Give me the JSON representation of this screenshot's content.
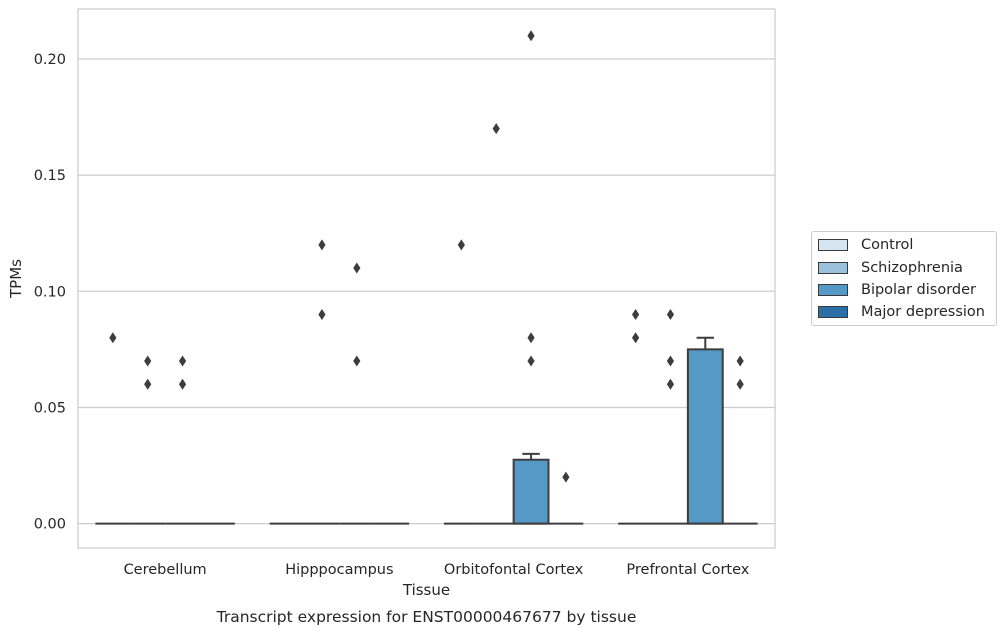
{
  "chart_data": {
    "type": "box",
    "title": "Transcript expression for ENST00000467677 by tissue",
    "xlabel": "Tissue",
    "ylabel": "TPMs",
    "ylim": [
      -0.0105,
      0.2215
    ],
    "yticks": [
      0.0,
      0.05,
      0.1,
      0.15,
      0.2
    ],
    "ytick_labels": [
      "0.00",
      "0.05",
      "0.10",
      "0.15",
      "0.20"
    ],
    "grid": "horizontal",
    "legend_position": "right",
    "categories": [
      "Cerebellum",
      "Hipppocampus",
      "Orbitofontal Cortex",
      "Prefrontal Cortex"
    ],
    "series": [
      {
        "name": "Control",
        "color": "#d4e4f1",
        "boxes": [
          {
            "q1": 0,
            "median": 0,
            "q3": 0,
            "whisker_low": 0,
            "whisker_high": 0,
            "outliers": [
              0.08
            ]
          },
          {
            "q1": 0,
            "median": 0,
            "q3": 0,
            "whisker_low": 0,
            "whisker_high": 0,
            "outliers": []
          },
          {
            "q1": 0,
            "median": 0,
            "q3": 0,
            "whisker_low": 0,
            "whisker_high": 0,
            "outliers": [
              0.12
            ]
          },
          {
            "q1": 0,
            "median": 0,
            "q3": 0,
            "whisker_low": 0,
            "whisker_high": 0,
            "outliers": [
              0.09,
              0.08
            ]
          }
        ]
      },
      {
        "name": "Schizophrenia",
        "color": "#9ac2dc",
        "boxes": [
          {
            "q1": 0,
            "median": 0,
            "q3": 0,
            "whisker_low": 0,
            "whisker_high": 0,
            "outliers": [
              0.07,
              0.06
            ]
          },
          {
            "q1": 0,
            "median": 0,
            "q3": 0,
            "whisker_low": 0,
            "whisker_high": 0,
            "outliers": [
              0.12,
              0.09
            ]
          },
          {
            "q1": 0,
            "median": 0,
            "q3": 0,
            "whisker_low": 0,
            "whisker_high": 0,
            "outliers": [
              0.17
            ]
          },
          {
            "q1": 0,
            "median": 0,
            "q3": 0,
            "whisker_low": 0,
            "whisker_high": 0,
            "outliers": [
              0.09,
              0.07,
              0.06
            ]
          }
        ]
      },
      {
        "name": "Bipolar disorder",
        "color": "#5599c7",
        "boxes": [
          {
            "q1": 0,
            "median": 0,
            "q3": 0,
            "whisker_low": 0,
            "whisker_high": 0,
            "outliers": [
              0.07,
              0.06
            ]
          },
          {
            "q1": 0,
            "median": 0,
            "q3": 0,
            "whisker_low": 0,
            "whisker_high": 0,
            "outliers": [
              0.11,
              0.07
            ]
          },
          {
            "q1": 0,
            "median": 0,
            "q3": 0.0275,
            "whisker_low": 0,
            "whisker_high": 0.03,
            "outliers": [
              0.21,
              0.08,
              0.07
            ]
          },
          {
            "q1": 0,
            "median": 0,
            "q3": 0.075,
            "whisker_low": 0,
            "whisker_high": 0.08,
            "outliers": []
          }
        ]
      },
      {
        "name": "Major depression",
        "color": "#2c6ea8",
        "boxes": [
          {
            "q1": 0,
            "median": 0,
            "q3": 0,
            "whisker_low": 0,
            "whisker_high": 0,
            "outliers": []
          },
          {
            "q1": 0,
            "median": 0,
            "q3": 0,
            "whisker_low": 0,
            "whisker_high": 0,
            "outliers": []
          },
          {
            "q1": 0,
            "median": 0,
            "q3": 0,
            "whisker_low": 0,
            "whisker_high": 0,
            "outliers": [
              0.02
            ]
          },
          {
            "q1": 0,
            "median": 0,
            "q3": 0,
            "whisker_low": 0,
            "whisker_high": 0,
            "outliers": [
              0.07,
              0.06
            ]
          }
        ]
      }
    ]
  }
}
